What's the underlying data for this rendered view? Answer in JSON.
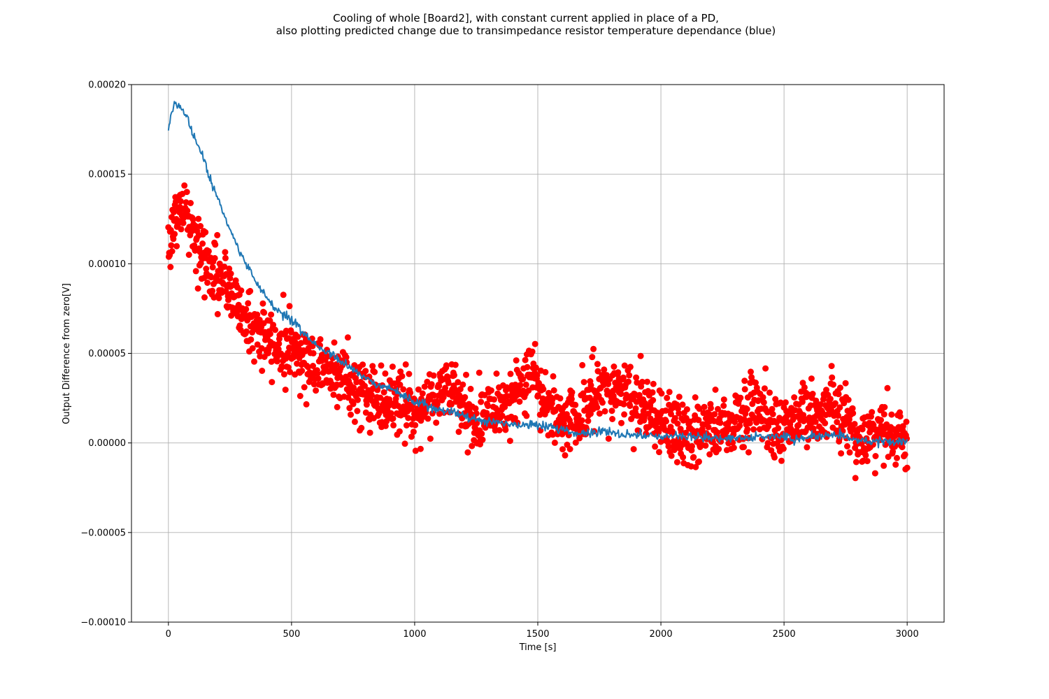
{
  "chart_data": {
    "type": "scatter",
    "title_line1": "Cooling of whole [Board2], with constant current applied in place of a PD,",
    "title_line2": "also plotting predicted change due to transimpedance resistor temperature dependance (blue)",
    "xlabel": "Time [s]",
    "ylabel": "Output Difference from zero[V]",
    "xlim": [
      -150,
      3150
    ],
    "ylim": [
      -0.0001,
      0.0002
    ],
    "grid": true,
    "x_ticks": [
      0,
      500,
      1000,
      1500,
      2000,
      2500,
      3000
    ],
    "x_tick_labels": [
      "0",
      "500",
      "1000",
      "1500",
      "2000",
      "2500",
      "3000"
    ],
    "y_ticks": [
      -0.0001,
      -5e-05,
      0,
      5e-05,
      0.0001,
      0.00015,
      0.0002
    ],
    "y_tick_labels": [
      "−0.00010",
      "−0.00005",
      "0.00000",
      "0.00005",
      "0.00010",
      "0.00015",
      "0.00020"
    ],
    "series": [
      {
        "kind": "scatter",
        "color": "#ff0000",
        "trend": {
          "x": [
            0,
            30,
            60,
            90,
            120,
            150,
            200,
            250,
            300,
            350,
            400,
            450,
            500,
            550,
            600,
            650,
            700,
            750,
            800,
            850,
            900,
            950,
            1000,
            1050,
            1100,
            1150,
            1200,
            1250,
            1300,
            1350,
            1400,
            1450,
            1480,
            1500,
            1550,
            1600,
            1650,
            1700,
            1750,
            1800,
            1850,
            1900,
            1950,
            2000,
            2050,
            2100,
            2150,
            2200,
            2250,
            2300,
            2350,
            2380,
            2400,
            2450,
            2500,
            2540,
            2600,
            2650,
            2700,
            2750,
            2800,
            2850,
            2900,
            2950,
            3000
          ],
          "y": [
            0.000112,
            0.000125,
            0.000132,
            0.000122,
            0.000108,
            0.0001,
            9.3e-05,
            8.5e-05,
            7.2e-05,
            6.4e-05,
            5.7e-05,
            5.4e-05,
            5.3e-05,
            4.8e-05,
            4.3e-05,
            4.2e-05,
            3.8e-05,
            3.2e-05,
            2.7e-05,
            2.5e-05,
            2.3e-05,
            2.2e-05,
            1.8e-05,
            2.2e-05,
            3e-05,
            3.2e-05,
            1.5e-05,
            1.2e-05,
            2e-05,
            2.2e-05,
            2.5e-05,
            3e-05,
            4.2e-05,
            3.5e-05,
            1.8e-05,
            1.5e-05,
            1.2e-05,
            2e-05,
            3e-05,
            2.8e-05,
            3e-05,
            2.5e-05,
            1.8e-05,
            1.2e-05,
            8e-06,
            5e-06,
            2e-06,
            8e-06,
            1e-05,
            1.2e-05,
            1.5e-05,
            2.5e-05,
            2e-05,
            1.2e-05,
            5e-06,
            1.5e-05,
            1.5e-05,
            1.8e-05,
            2e-05,
            1.2e-05,
            4e-06,
            3e-06,
            6e-06,
            4e-06,
            3e-06
          ]
        },
        "noise": 9e-06,
        "n_points": 1800
      },
      {
        "kind": "line",
        "color": "#1f77b4",
        "x": [
          0,
          10,
          20,
          30,
          45,
          60,
          80,
          100,
          120,
          140,
          160,
          180,
          200,
          230,
          260,
          290,
          320,
          350,
          380,
          410,
          440,
          470,
          500,
          550,
          600,
          650,
          700,
          750,
          800,
          850,
          900,
          950,
          1000,
          1050,
          1100,
          1150,
          1200,
          1250,
          1300,
          1350,
          1400,
          1450,
          1500,
          1550,
          1600,
          1650,
          1700,
          1750,
          1800,
          1850,
          1900,
          1950,
          2000,
          2050,
          2100,
          2150,
          2200,
          2250,
          2300,
          2350,
          2400,
          2450,
          2500,
          2550,
          2600,
          2650,
          2700,
          2750,
          2800,
          2850,
          2900,
          2950,
          3000
        ],
        "y": [
          0.000173,
          0.000182,
          0.000188,
          0.00019,
          0.000188,
          0.000186,
          0.000181,
          0.000173,
          0.000166,
          0.000159,
          0.000151,
          0.000143,
          0.000137,
          0.000126,
          0.000115,
          0.000106,
          9.9e-05,
          9.1e-05,
          8.5e-05,
          7.9e-05,
          7.5e-05,
          7.1e-05,
          6.8e-05,
          6.1e-05,
          5.5e-05,
          5e-05,
          4.5e-05,
          4.1e-05,
          3.6e-05,
          3.2e-05,
          3e-05,
          2.7e-05,
          2.4e-05,
          2.1e-05,
          1.9e-05,
          1.7e-05,
          1.5e-05,
          1.3e-05,
          1.2e-05,
          1.1e-05,
          1e-05,
          1e-05,
          1e-05,
          9e-06,
          8e-06,
          5e-06,
          6e-06,
          6e-06,
          6e-06,
          5e-06,
          5e-06,
          4e-06,
          3e-06,
          4e-06,
          4e-06,
          3e-06,
          3e-06,
          2e-06,
          3e-06,
          3e-06,
          4e-06,
          3e-06,
          4e-06,
          2e-06,
          3e-06,
          3e-06,
          5e-06,
          3e-06,
          1e-06,
          1e-06,
          1e-06,
          1e-06,
          0.0
        ],
        "noise": 1.2e-06
      }
    ]
  }
}
